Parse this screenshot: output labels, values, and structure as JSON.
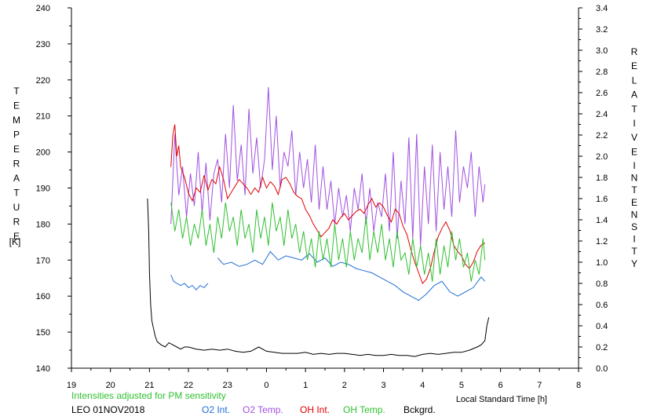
{
  "chart_data": {
    "type": "line",
    "title": "",
    "left_axis": {
      "label_letters": [
        "T",
        "E",
        "M",
        "P",
        "E",
        "R",
        "A",
        "T",
        "U",
        "R",
        "E"
      ],
      "unit": "[K]",
      "range": [
        140,
        240
      ],
      "ticks": [
        "140",
        "150",
        "160",
        "170",
        "180",
        "190",
        "200",
        "210",
        "220",
        "230",
        "240"
      ]
    },
    "right_axis": {
      "label_word1": [
        "R",
        "E",
        "L",
        "A",
        "T",
        "I",
        "V",
        "E"
      ],
      "label_word2": [
        "I",
        "N",
        "T",
        "E",
        "N",
        "S",
        "I",
        "T",
        "Y"
      ],
      "range": [
        0,
        3.4
      ],
      "ticks": [
        "0.0",
        "0.2",
        "0.4",
        "0.6",
        "0.8",
        "1.0",
        "1.2",
        "1.4",
        "1.6",
        "1.8",
        "2.0",
        "2.2",
        "2.4",
        "2.6",
        "2.8",
        "3.0",
        "3.2",
        "3.4"
      ]
    },
    "x_axis": {
      "label": "Local Standard Time [h]",
      "range": [
        0,
        13
      ],
      "tick_labels": [
        "19",
        "20",
        "21",
        "22",
        "23",
        "0",
        "1",
        "2",
        "3",
        "4",
        "5",
        "6",
        "7",
        "8"
      ]
    },
    "note": "Intensities adjusted for PM sensitivity",
    "station": "LEO 01NOV2018",
    "series": [
      {
        "name": "O2 Int.",
        "color": "#1f6fd6",
        "axis": "right",
        "segments": [
          {
            "x": [
              2.55,
              2.62,
              2.7,
              2.8,
              2.9,
              3.0,
              3.1,
              3.2,
              3.3,
              3.4,
              3.5
            ],
            "y": [
              0.88,
              0.82,
              0.8,
              0.78,
              0.8,
              0.76,
              0.78,
              0.74,
              0.78,
              0.76,
              0.8
            ]
          },
          {
            "x": [
              3.75,
              3.9,
              4.1,
              4.3,
              4.5,
              4.7,
              4.9,
              5.1,
              5.3,
              5.5,
              5.7,
              5.9,
              6.1,
              6.3,
              6.5,
              6.7,
              6.9,
              7.1,
              7.3,
              7.5,
              7.7,
              7.9,
              8.1,
              8.3,
              8.5,
              8.7,
              8.9,
              9.1,
              9.3,
              9.5,
              9.7,
              9.9,
              10.1,
              10.3,
              10.5,
              10.6
            ],
            "y": [
              1.04,
              0.98,
              1.0,
              0.96,
              0.98,
              1.02,
              0.98,
              1.1,
              1.02,
              1.06,
              1.04,
              1.02,
              1.08,
              1.0,
              1.04,
              0.96,
              1.0,
              0.98,
              0.94,
              0.92,
              0.9,
              0.86,
              0.82,
              0.78,
              0.72,
              0.68,
              0.64,
              0.7,
              0.78,
              0.82,
              0.72,
              0.68,
              0.72,
              0.76,
              0.86,
              0.82
            ]
          }
        ]
      },
      {
        "name": "O2 Temp.",
        "color": "#a050e0",
        "axis": "left",
        "segments": [
          {
            "x": [
              2.55,
              2.65,
              2.75,
              2.85,
              2.95,
              3.05,
              3.15,
              3.25,
              3.35,
              3.45,
              3.55,
              3.65,
              3.75,
              3.85,
              3.95,
              4.05,
              4.15,
              4.25,
              4.35,
              4.45,
              4.55,
              4.65,
              4.75,
              4.85,
              4.95,
              5.05,
              5.15,
              5.25,
              5.35,
              5.45,
              5.55,
              5.65,
              5.75,
              5.85,
              5.95,
              6.05,
              6.15,
              6.25,
              6.35,
              6.45,
              6.55,
              6.65,
              6.75,
              6.85,
              6.95,
              7.05,
              7.15,
              7.25,
              7.35,
              7.45,
              7.55,
              7.65,
              7.75,
              7.85,
              7.95,
              8.05,
              8.15,
              8.25,
              8.35,
              8.45,
              8.55,
              8.65,
              8.75,
              8.85,
              8.95,
              9.05,
              9.15,
              9.25,
              9.35,
              9.45,
              9.55,
              9.65,
              9.75,
              9.85,
              9.95,
              10.05,
              10.15,
              10.25,
              10.35,
              10.45,
              10.55,
              10.6
            ],
            "y": [
              180,
              205,
              188,
              196,
              182,
              194,
              185,
              200,
              183,
              197,
              181,
              194,
              198,
              186,
              205,
              190,
              213,
              192,
              202,
              188,
              212,
              194,
              204,
              190,
              198,
              218,
              195,
              210,
              190,
              200,
              196,
              206,
              188,
              200,
              190,
              198,
              186,
              202,
              184,
              196,
              184,
              192,
              180,
              190,
              182,
              188,
              178,
              190,
              184,
              194,
              180,
              190,
              178,
              186,
              182,
              194,
              178,
              200,
              176,
              192,
              180,
              204,
              176,
              205,
              174,
              196,
              180,
              202,
              178,
              200,
              184,
              196,
              182,
              206,
              186,
              196,
              190,
              200,
              182,
              196,
              186,
              191
            ]
          }
        ]
      },
      {
        "name": "OH Int.",
        "color": "#e00000",
        "axis": "right",
        "segments": [
          {
            "x": [
              2.55,
              2.6,
              2.65,
              2.7,
              2.75,
              2.8,
              2.9,
              3.0,
              3.1,
              3.2,
              3.3,
              3.4,
              3.5,
              3.6,
              3.7,
              3.8,
              3.9,
              4.0,
              4.1,
              4.2,
              4.3,
              4.4,
              4.5,
              4.6,
              4.7,
              4.8,
              4.9,
              5.0,
              5.1,
              5.2,
              5.3,
              5.4,
              5.5,
              5.6,
              5.7,
              5.8,
              5.9,
              6.0,
              6.1,
              6.2,
              6.3,
              6.4,
              6.5,
              6.6,
              6.7,
              6.8,
              6.9,
              7.0,
              7.1,
              7.2,
              7.3,
              7.4,
              7.5,
              7.6,
              7.7,
              7.8,
              7.9,
              8.0,
              8.1,
              8.2,
              8.3,
              8.4,
              8.5,
              8.6,
              8.7,
              8.8,
              8.9,
              9.0,
              9.1,
              9.2,
              9.3,
              9.4,
              9.5,
              9.6,
              9.7,
              9.8,
              9.9,
              10.0,
              10.1,
              10.2,
              10.3,
              10.4,
              10.5,
              10.6
            ],
            "y": [
              1.9,
              2.2,
              2.3,
              2.0,
              2.1,
              1.9,
              1.8,
              1.65,
              1.58,
              1.7,
              1.66,
              1.82,
              1.68,
              1.78,
              1.74,
              1.9,
              1.78,
              1.6,
              1.66,
              1.72,
              1.78,
              1.74,
              1.7,
              1.64,
              1.7,
              1.66,
              1.8,
              1.7,
              1.76,
              1.72,
              1.64,
              1.78,
              1.8,
              1.74,
              1.66,
              1.62,
              1.6,
              1.5,
              1.44,
              1.36,
              1.3,
              1.24,
              1.28,
              1.32,
              1.4,
              1.36,
              1.42,
              1.46,
              1.4,
              1.44,
              1.48,
              1.5,
              1.46,
              1.54,
              1.6,
              1.52,
              1.56,
              1.52,
              1.44,
              1.38,
              1.5,
              1.46,
              1.34,
              1.26,
              1.12,
              1.0,
              0.9,
              0.8,
              0.84,
              0.94,
              1.1,
              1.24,
              1.32,
              1.38,
              1.3,
              1.16,
              1.1,
              1.06,
              0.98,
              0.94,
              1.0,
              1.1,
              1.16,
              1.18
            ]
          }
        ]
      },
      {
        "name": "OH Temp.",
        "color": "#30c030",
        "axis": "left",
        "segments": [
          {
            "x": [
              2.55,
              2.65,
              2.75,
              2.85,
              2.95,
              3.05,
              3.15,
              3.25,
              3.35,
              3.45,
              3.55,
              3.65,
              3.75,
              3.85,
              3.95,
              4.05,
              4.15,
              4.25,
              4.35,
              4.45,
              4.55,
              4.65,
              4.75,
              4.85,
              4.95,
              5.05,
              5.15,
              5.25,
              5.35,
              5.45,
              5.55,
              5.65,
              5.75,
              5.85,
              5.95,
              6.05,
              6.15,
              6.25,
              6.35,
              6.45,
              6.55,
              6.65,
              6.75,
              6.85,
              6.95,
              7.05,
              7.15,
              7.25,
              7.35,
              7.45,
              7.55,
              7.65,
              7.75,
              7.85,
              7.95,
              8.05,
              8.15,
              8.25,
              8.35,
              8.45,
              8.55,
              8.65,
              8.75,
              8.85,
              8.95,
              9.05,
              9.15,
              9.25,
              9.35,
              9.45,
              9.55,
              9.65,
              9.75,
              9.85,
              9.95,
              10.05,
              10.15,
              10.25,
              10.35,
              10.45,
              10.55,
              10.6
            ],
            "y": [
              186,
              178,
              184,
              176,
              182,
              174,
              180,
              176,
              184,
              174,
              180,
              172,
              182,
              176,
              186,
              178,
              182,
              174,
              184,
              176,
              180,
              172,
              184,
              176,
              182,
              174,
              186,
              178,
              182,
              174,
              184,
              176,
              180,
              172,
              178,
              170,
              176,
              168,
              178,
              170,
              176,
              168,
              180,
              170,
              176,
              168,
              178,
              170,
              176,
              172,
              182,
              170,
              178,
              172,
              180,
              170,
              176,
              168,
              178,
              170,
              172,
              166,
              176,
              168,
              174,
              166,
              172,
              164,
              176,
              166,
              174,
              168,
              178,
              170,
              176,
              168,
              172,
              164,
              170,
              166,
              176,
              170
            ]
          }
        ]
      },
      {
        "name": "Bckgrd.",
        "color": "#000000",
        "axis": "right",
        "segments": [
          {
            "x": [
              1.95,
              1.98,
              2.0,
              2.03,
              2.06,
              2.1,
              2.15,
              2.2,
              2.3,
              2.4,
              2.5,
              2.6,
              2.7,
              2.8,
              2.9,
              3.0,
              3.2,
              3.4,
              3.6,
              3.8,
              4.0,
              4.2,
              4.4,
              4.6,
              4.8,
              5.0,
              5.2,
              5.4,
              5.6,
              5.8,
              6.0,
              6.2,
              6.4,
              6.6,
              6.8,
              7.0,
              7.2,
              7.4,
              7.6,
              7.8,
              8.0,
              8.2,
              8.4,
              8.6,
              8.8,
              9.0,
              9.2,
              9.4,
              9.6,
              9.8,
              10.0,
              10.2,
              10.4,
              10.5,
              10.6,
              10.65,
              10.7
            ],
            "y": [
              1.6,
              1.3,
              0.9,
              0.6,
              0.45,
              0.38,
              0.3,
              0.25,
              0.22,
              0.2,
              0.24,
              0.22,
              0.2,
              0.18,
              0.2,
              0.2,
              0.18,
              0.17,
              0.18,
              0.17,
              0.18,
              0.16,
              0.15,
              0.16,
              0.2,
              0.16,
              0.15,
              0.14,
              0.14,
              0.14,
              0.15,
              0.13,
              0.14,
              0.13,
              0.14,
              0.14,
              0.13,
              0.12,
              0.13,
              0.12,
              0.12,
              0.13,
              0.12,
              0.12,
              0.11,
              0.13,
              0.14,
              0.13,
              0.14,
              0.15,
              0.15,
              0.17,
              0.2,
              0.22,
              0.26,
              0.4,
              0.48
            ]
          }
        ]
      }
    ]
  }
}
